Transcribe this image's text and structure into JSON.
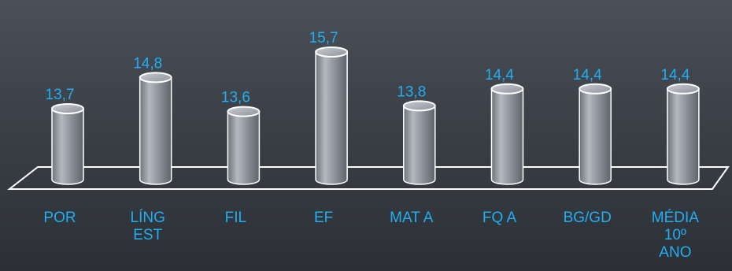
{
  "chart_data": {
    "type": "bar",
    "style": "3d-cylinder",
    "categories": [
      "POR",
      "LÍNG EST",
      "FIL",
      "EF",
      "MAT A",
      "FQ A",
      "BG/GD",
      "MÉDIA 10º ANO"
    ],
    "category_lines": [
      [
        "POR"
      ],
      [
        "LÍNG",
        "EST"
      ],
      [
        "FIL"
      ],
      [
        "EF"
      ],
      [
        "MAT A"
      ],
      [
        "FQ A"
      ],
      [
        "BG/GD"
      ],
      [
        "MÉDIA",
        "10º",
        "ANO"
      ]
    ],
    "values": [
      13.7,
      14.8,
      13.6,
      15.7,
      13.8,
      14.4,
      14.4,
      14.4
    ],
    "value_labels": [
      "13,7",
      "14,8",
      "13,6",
      "15,7",
      "13,8",
      "14,4",
      "14,4",
      "14,4"
    ],
    "title": "",
    "xlabel": "",
    "ylabel": "",
    "grid": false,
    "legend": "none",
    "colors": {
      "bar": "#8e949c",
      "bar_outline": "#ffffff",
      "labels": "#23aef0",
      "background": "#3b4047"
    }
  }
}
